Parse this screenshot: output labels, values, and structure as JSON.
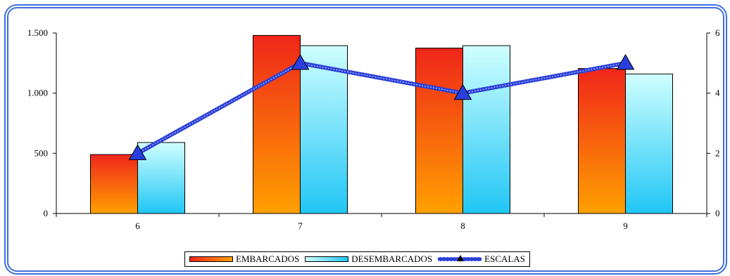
{
  "chart_data": {
    "type": "bar",
    "categories": [
      "6",
      "7",
      "8",
      "9"
    ],
    "series": [
      {
        "name": "EMBARCADOS",
        "type": "bar",
        "axis": "left",
        "values": [
          490,
          1480,
          1375,
          1205
        ]
      },
      {
        "name": "DESEMBARCADOS",
        "type": "bar",
        "axis": "left",
        "values": [
          590,
          1395,
          1395,
          1160
        ]
      },
      {
        "name": "ESCALAS",
        "type": "line",
        "axis": "right",
        "values": [
          2,
          5,
          4,
          5
        ]
      }
    ],
    "y_left": {
      "ylim": [
        0,
        1500
      ],
      "ticks": [
        0,
        500,
        1000,
        1500
      ],
      "tick_labels": [
        "0",
        "500",
        "1.000",
        "1.500"
      ]
    },
    "y_right": {
      "ylim": [
        0,
        6
      ],
      "ticks": [
        0,
        2,
        4,
        6
      ],
      "tick_labels": [
        "0",
        "2",
        "4",
        "6"
      ]
    },
    "legend_position": "bottom",
    "colors": {
      "embarcados_top": "#f0261a",
      "embarcados_bottom": "#ffa000",
      "desembarcados_top": "#cfffff",
      "desembarcados_bottom": "#20c6f5",
      "escalas": "#2b3fd6",
      "marker": "#2a3fe0",
      "frame": "#3f6fe0"
    }
  }
}
